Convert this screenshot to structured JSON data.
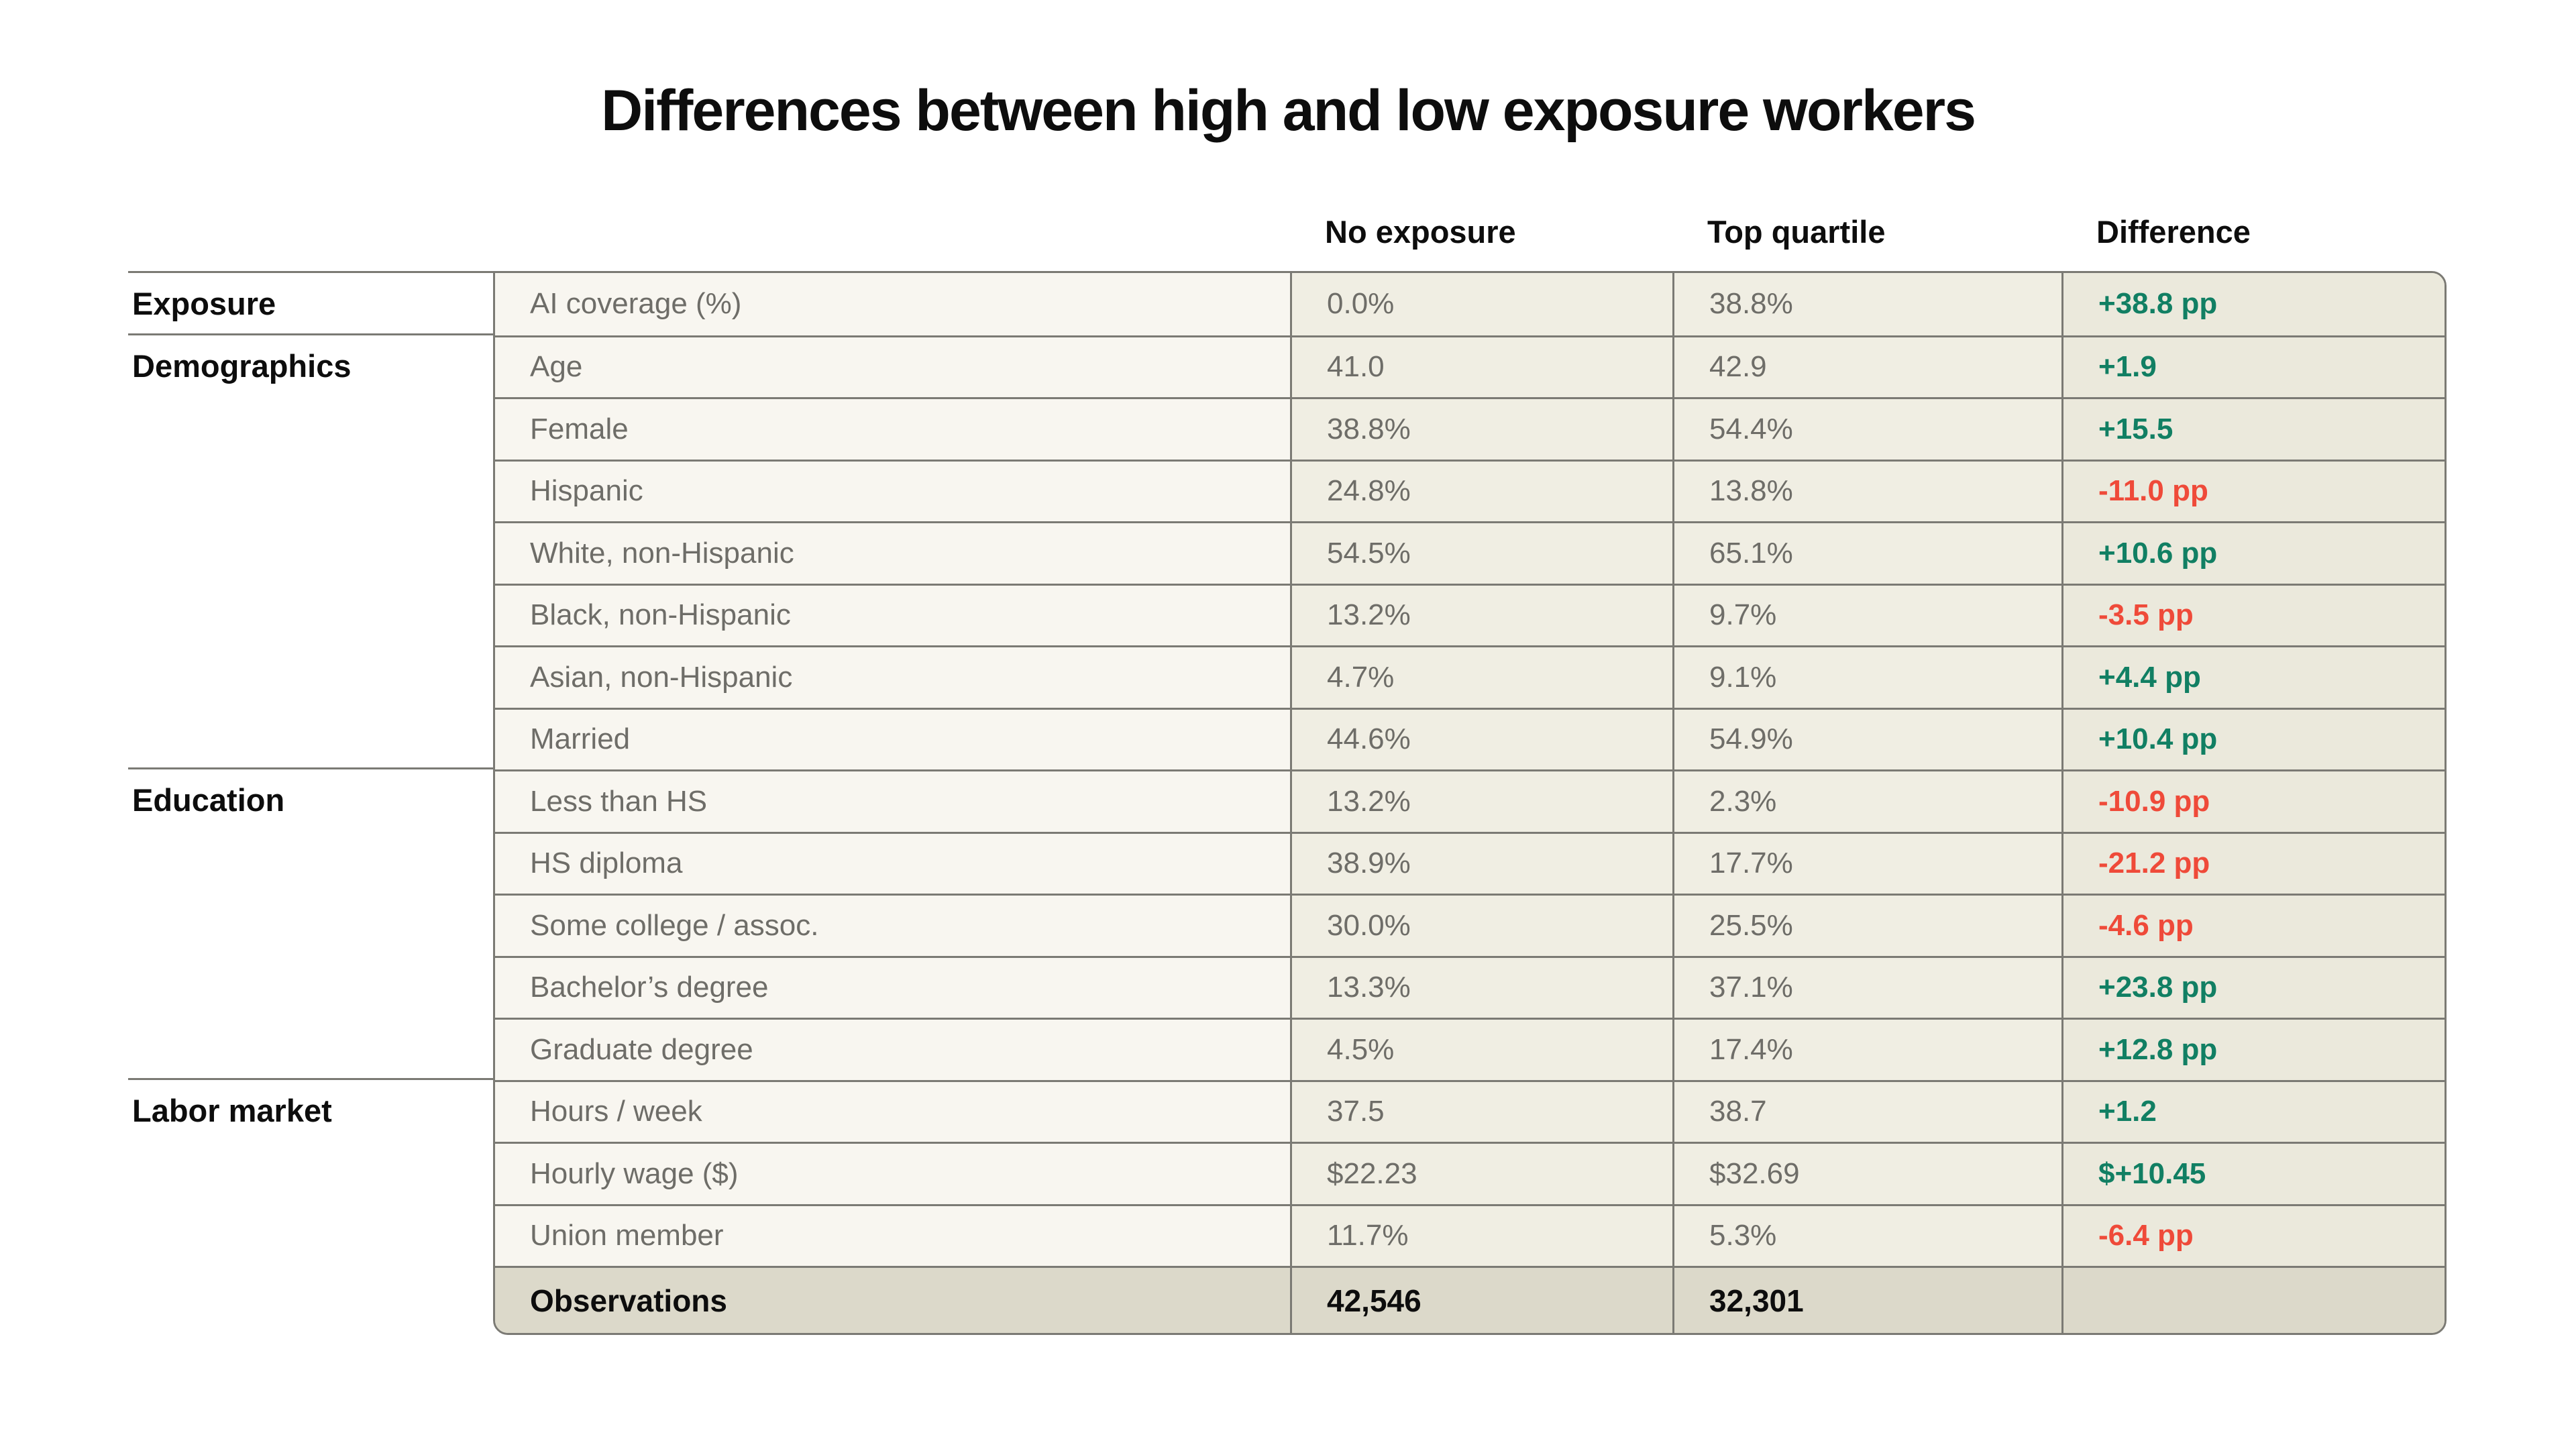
{
  "title": "Differences between high and low exposure workers",
  "colors": {
    "positive_text": "#117f63",
    "negative_text": "#ef4a39",
    "row_label_background": "#f8f6f0",
    "value_background": "#f0eee3",
    "difference_background": "#ebe9dc",
    "observations_background": "#dcd9ca",
    "grid_line": "#7b7a74"
  },
  "chart_data": {
    "type": "table",
    "title": "Differences between high and low exposure workers",
    "columns": [
      "No exposure",
      "Top quartile",
      "Difference"
    ],
    "legend_position": "none",
    "grid": true,
    "row_groups": [
      {
        "label": "Exposure",
        "rows": [
          {
            "label": "AI coverage (%)",
            "no_exposure": "0.0%",
            "top_quartile": "38.8%",
            "difference": "+38.8 pp",
            "trend": "positive"
          }
        ]
      },
      {
        "label": "Demographics",
        "rows": [
          {
            "label": "Age",
            "no_exposure": "41.0",
            "top_quartile": "42.9",
            "difference": "+1.9",
            "trend": "positive"
          },
          {
            "label": "Female",
            "no_exposure": "38.8%",
            "top_quartile": "54.4%",
            "difference": "+15.5",
            "trend": "positive"
          },
          {
            "label": "Hispanic",
            "no_exposure": "24.8%",
            "top_quartile": "13.8%",
            "difference": "-11.0 pp",
            "trend": "negative"
          },
          {
            "label": "White, non-Hispanic",
            "no_exposure": "54.5%",
            "top_quartile": "65.1%",
            "difference": "+10.6 pp",
            "trend": "positive"
          },
          {
            "label": "Black, non-Hispanic",
            "no_exposure": "13.2%",
            "top_quartile": "9.7%",
            "difference": "-3.5 pp",
            "trend": "negative"
          },
          {
            "label": "Asian, non-Hispanic",
            "no_exposure": "4.7%",
            "top_quartile": "9.1%",
            "difference": "+4.4 pp",
            "trend": "positive"
          },
          {
            "label": "Married",
            "no_exposure": "44.6%",
            "top_quartile": "54.9%",
            "difference": "+10.4 pp",
            "trend": "positive"
          }
        ]
      },
      {
        "label": "Education",
        "rows": [
          {
            "label": "Less than HS",
            "no_exposure": "13.2%",
            "top_quartile": "2.3%",
            "difference": "-10.9 pp",
            "trend": "negative"
          },
          {
            "label": "HS diploma",
            "no_exposure": "38.9%",
            "top_quartile": "17.7%",
            "difference": "-21.2 pp",
            "trend": "negative"
          },
          {
            "label": "Some college / assoc.",
            "no_exposure": "30.0%",
            "top_quartile": "25.5%",
            "difference": "-4.6 pp",
            "trend": "negative"
          },
          {
            "label": "Bachelor’s degree",
            "no_exposure": "13.3%",
            "top_quartile": "37.1%",
            "difference": "+23.8 pp",
            "trend": "positive"
          },
          {
            "label": "Graduate degree",
            "no_exposure": "4.5%",
            "top_quartile": "17.4%",
            "difference": "+12.8 pp",
            "trend": "positive"
          }
        ]
      },
      {
        "label": "Labor market",
        "rows": [
          {
            "label": "Hours / week",
            "no_exposure": "37.5",
            "top_quartile": "38.7",
            "difference": "+1.2",
            "trend": "positive"
          },
          {
            "label": "Hourly wage ($)",
            "no_exposure": "$22.23",
            "top_quartile": "$32.69",
            "difference": "$+10.45",
            "trend": "positive"
          },
          {
            "label": "Union member",
            "no_exposure": "11.7%",
            "top_quartile": "5.3%",
            "difference": "-6.4 pp",
            "trend": "negative"
          }
        ]
      }
    ],
    "footer_row": {
      "label": "Observations",
      "no_exposure": "42,546",
      "top_quartile": "32,301",
      "difference": ""
    }
  }
}
